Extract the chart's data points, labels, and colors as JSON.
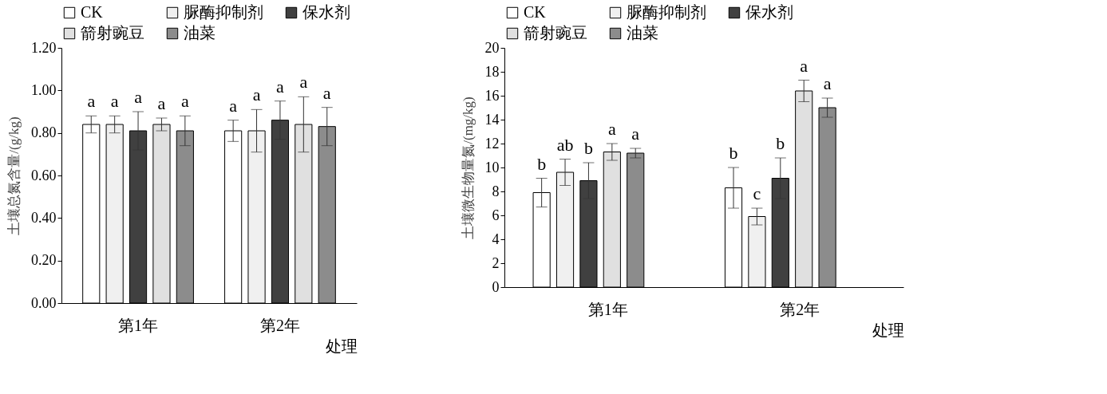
{
  "chart_data": [
    {
      "type": "bar",
      "xlabel": "处理",
      "ylabel": "土壤总氮含量/(g/kg)",
      "categories": [
        "第1年",
        "第2年"
      ],
      "legend": "top",
      "grid": false,
      "ylim": [
        0,
        1.2
      ],
      "yticks": [
        {
          "value": 0,
          "label": "0.00"
        },
        {
          "value": 0.2,
          "label": "0.20"
        },
        {
          "value": 0.4,
          "label": "0.40"
        },
        {
          "value": 0.6,
          "label": "0.60"
        },
        {
          "value": 0.8,
          "label": "0.80"
        },
        {
          "value": 1.0,
          "label": "1.00"
        },
        {
          "value": 1.2,
          "label": "1.20"
        }
      ],
      "series": [
        {
          "name": "CK",
          "color": "#ffffff",
          "values": [
            0.84,
            0.81
          ],
          "errors": [
            0.04,
            0.05
          ],
          "value_labels": [
            "a",
            "a"
          ]
        },
        {
          "name": "脲酶抑制剂",
          "color": "#f0f0f0",
          "values": [
            0.84,
            0.81
          ],
          "errors": [
            0.04,
            0.1
          ],
          "value_labels": [
            "a",
            "a"
          ]
        },
        {
          "name": "保水剂",
          "color": "#404040",
          "values": [
            0.81,
            0.86
          ],
          "errors": [
            0.09,
            0.09
          ],
          "value_labels": [
            "a",
            "a"
          ]
        },
        {
          "name": "箭射豌豆",
          "color": "#e0e0e0",
          "values": [
            0.84,
            0.84
          ],
          "errors": [
            0.03,
            0.13
          ],
          "value_labels": [
            "a",
            "a"
          ]
        },
        {
          "name": "油菜",
          "color": "#8c8c8c",
          "values": [
            0.81,
            0.83
          ],
          "errors": [
            0.07,
            0.09
          ],
          "value_labels": [
            "a",
            "a"
          ]
        }
      ]
    },
    {
      "type": "bar",
      "xlabel": "处理",
      "ylabel": "土壤微生物量氮/(mg/kg)",
      "categories": [
        "第1年",
        "第2年"
      ],
      "legend": "top",
      "grid": false,
      "ylim": [
        0,
        20
      ],
      "yticks": [
        0,
        2,
        4,
        6,
        8,
        10,
        12,
        14,
        16,
        18,
        20
      ],
      "series": [
        {
          "name": "CK",
          "color": "#ffffff",
          "values": [
            7.9,
            8.3
          ],
          "errors": [
            1.2,
            1.7
          ],
          "value_labels": [
            "b",
            "b"
          ]
        },
        {
          "name": "脲酶抑制剂",
          "color": "#f0f0f0",
          "values": [
            9.6,
            5.9
          ],
          "errors": [
            1.1,
            0.7
          ],
          "value_labels": [
            "ab",
            "c"
          ]
        },
        {
          "name": "保水剂",
          "color": "#404040",
          "values": [
            8.9,
            9.1
          ],
          "errors": [
            1.5,
            1.7
          ],
          "value_labels": [
            "b",
            "b"
          ]
        },
        {
          "name": "箭射豌豆",
          "color": "#e0e0e0",
          "values": [
            11.3,
            16.4
          ],
          "errors": [
            0.7,
            0.9
          ],
          "value_labels": [
            "a",
            "a"
          ]
        },
        {
          "name": "油菜",
          "color": "#8c8c8c",
          "values": [
            11.2,
            15.0
          ],
          "errors": [
            0.4,
            0.8
          ],
          "value_labels": [
            "a",
            "a"
          ]
        }
      ]
    }
  ]
}
